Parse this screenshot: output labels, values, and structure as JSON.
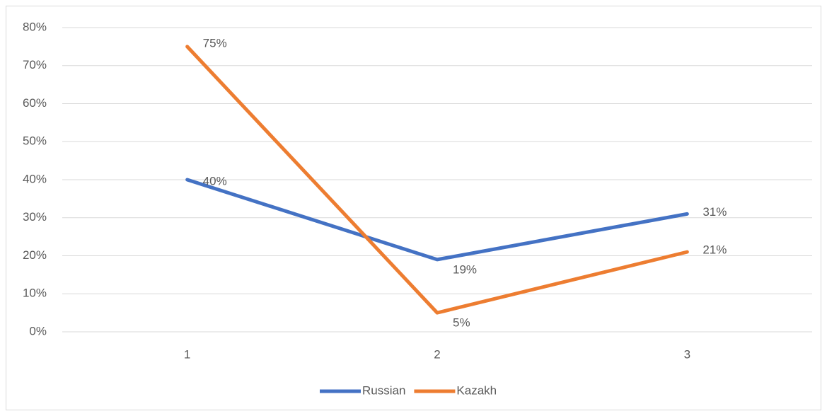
{
  "chart_data": {
    "type": "line",
    "categories": [
      "1",
      "2",
      "3"
    ],
    "series": [
      {
        "name": "Russian",
        "color": "#4472c4",
        "values": [
          40,
          19,
          31
        ],
        "value_labels": [
          "40%",
          "19%",
          "31%"
        ]
      },
      {
        "name": "Kazakh",
        "color": "#ed7d31",
        "values": [
          75,
          5,
          21
        ],
        "value_labels": [
          "75%",
          "5%",
          "21%"
        ]
      }
    ],
    "ylim": [
      0,
      80
    ],
    "yticks": [
      {
        "value": 0,
        "label": "0%"
      },
      {
        "value": 10,
        "label": "10%"
      },
      {
        "value": 20,
        "label": "20%"
      },
      {
        "value": 30,
        "label": "30%"
      },
      {
        "value": 40,
        "label": "40%"
      },
      {
        "value": 50,
        "label": "50%"
      },
      {
        "value": 60,
        "label": "60%"
      },
      {
        "value": 70,
        "label": "70%"
      },
      {
        "value": 80,
        "label": "80%"
      }
    ],
    "grid": true,
    "legend": "bottom"
  }
}
